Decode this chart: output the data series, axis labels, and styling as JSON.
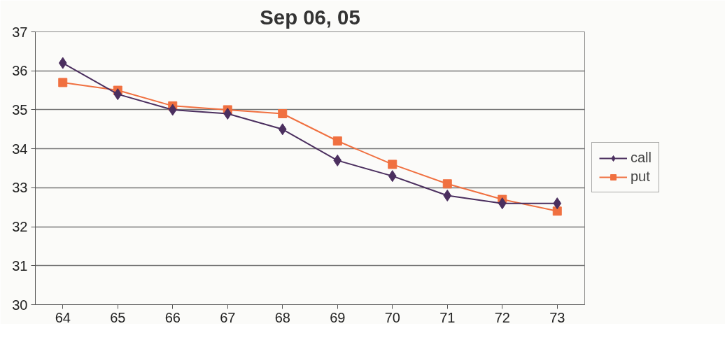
{
  "chart_data": {
    "type": "line",
    "title": "Sep 06, 05",
    "categories": [
      "64",
      "65",
      "66",
      "67",
      "68",
      "69",
      "70",
      "71",
      "72",
      "73"
    ],
    "series": [
      {
        "name": "call",
        "color": "#4b2f5f",
        "marker": "diamond",
        "values": [
          36.2,
          35.4,
          35.0,
          34.9,
          34.5,
          33.7,
          33.3,
          32.8,
          32.6,
          32.6
        ]
      },
      {
        "name": "put",
        "color": "#f07040",
        "marker": "square",
        "values": [
          35.7,
          35.5,
          35.1,
          35.0,
          34.9,
          34.2,
          33.6,
          33.1,
          32.7,
          32.4
        ]
      }
    ],
    "ylim": [
      30,
      37
    ],
    "yticks": [
      30,
      31,
      32,
      33,
      34,
      35,
      36,
      37
    ],
    "grid": "y",
    "legend": "right",
    "line_style": "solid"
  }
}
